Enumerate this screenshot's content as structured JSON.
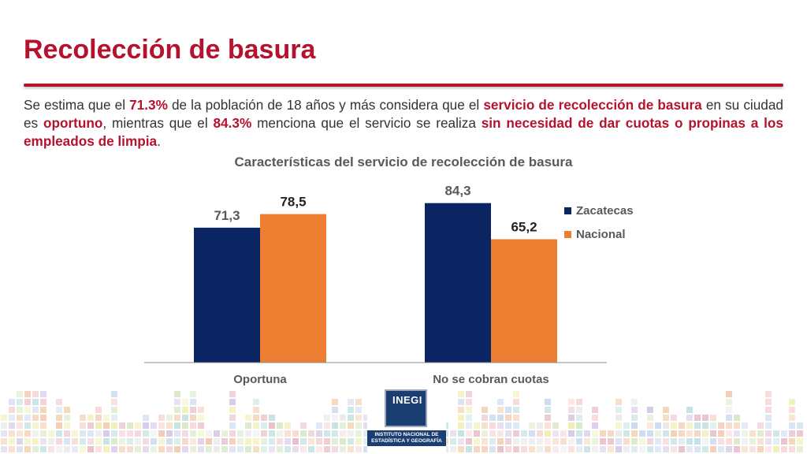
{
  "title": "Recolección de basura",
  "intro": {
    "p1": "Se estima que el ",
    "b1": "71.3%",
    "p2": " de la población de 18 años y más considera que el ",
    "b2": "servicio de recolección de basura",
    "p3": " en su ciudad es ",
    "b3": "oportuno",
    "p4": ", mientras que el ",
    "b4": "84.3%",
    "p5": " menciona que el servicio se realiza ",
    "b5": "sin necesidad de dar cuotas o propinas a los empleados de limpia",
    "p6": "."
  },
  "colors": {
    "accent": "#b5122e",
    "zacatecas": "#0b2563",
    "nacional": "#ed7d31"
  },
  "chart_data": {
    "type": "bar",
    "title": "Características del servicio de recolección de basura",
    "categories": [
      "Oportuna",
      "No se cobran cuotas"
    ],
    "series": [
      {
        "name": "Zacatecas",
        "values": [
          71.3,
          84.3
        ],
        "labels": [
          "71,3",
          "84,3"
        ]
      },
      {
        "name": "Nacional",
        "values": [
          78.5,
          65.2
        ],
        "labels": [
          "78,5",
          "65,2"
        ]
      }
    ],
    "ylim": [
      0,
      100
    ],
    "grid": false,
    "legend": "right"
  },
  "logo": {
    "name": "INEGI",
    "caption": "INSTITUTO NACIONAL DE ESTADÍSTICA Y GEOGRAFÍA"
  }
}
